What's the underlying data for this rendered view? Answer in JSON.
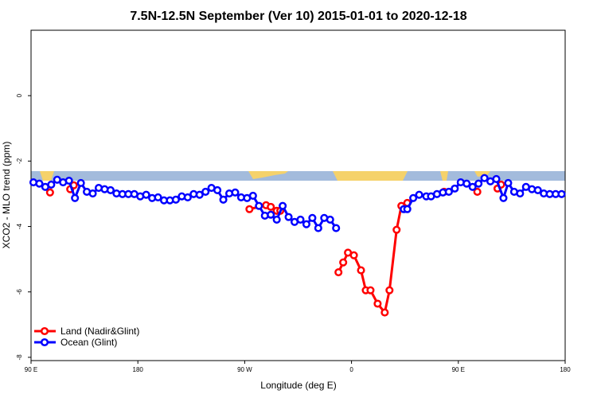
{
  "chart_data": {
    "type": "line",
    "title": "7.5N-12.5N September (Ver 10)   2015-01-01 to 2020-12-18",
    "x_label": "Longitude (deg E)",
    "y_label": "XCO2 - MLO trend (ppm)",
    "xlim": [
      90,
      540
    ],
    "xticks": [
      {
        "value": 90,
        "label": "90 E"
      },
      {
        "value": 180,
        "label": "180"
      },
      {
        "value": 270,
        "label": "90 W"
      },
      {
        "value": 360,
        "label": "0"
      },
      {
        "value": 450,
        "label": "90 E"
      },
      {
        "value": 540,
        "label": "180"
      }
    ],
    "ylim": [
      -8.1,
      2
    ],
    "yticks": [
      0,
      -2,
      -4,
      -6,
      -8
    ],
    "legend": "bottom-left",
    "series": [
      {
        "name": "Land (Nadir&Glint)",
        "color": "#ff0000",
        "x": [
          106,
          null,
          123,
          126,
          null,
          274,
          288,
          292,
          297,
          300,
          null,
          349,
          353,
          357,
          362,
          368,
          372,
          376,
          382,
          388,
          392,
          398,
          402,
          407,
          null,
          438,
          null,
          466,
          null,
          483,
          486
        ],
        "values": [
          -2.96,
          null,
          -2.86,
          -2.74,
          null,
          -3.47,
          -3.35,
          -3.4,
          -3.52,
          -3.52,
          null,
          -5.4,
          -5.1,
          -4.8,
          -4.88,
          -5.34,
          -5.95,
          -5.95,
          -6.36,
          -6.63,
          -5.95,
          -4.1,
          -3.37,
          -3.28,
          null,
          -2.94,
          null,
          -2.94,
          null,
          -2.84,
          -2.72
        ]
      },
      {
        "name": "Ocean (Glint)",
        "color": "#0000ff",
        "x": [
          92,
          97,
          102,
          107,
          112,
          117,
          122,
          127,
          132,
          137,
          142,
          147,
          152,
          157,
          162,
          167,
          172,
          177,
          182,
          187,
          192,
          197,
          202,
          207,
          212,
          217,
          222,
          227,
          232,
          237,
          242,
          247,
          252,
          257,
          262,
          267,
          272,
          277,
          282,
          287,
          292,
          297,
          302,
          307,
          312,
          317,
          322,
          327,
          332,
          337,
          342,
          347,
          null,
          404,
          407,
          412,
          417,
          423,
          427,
          432,
          437,
          442,
          447,
          452,
          457,
          462,
          467,
          472,
          477,
          482,
          488,
          492,
          497,
          502,
          507,
          512,
          517,
          522,
          527,
          532,
          537
        ],
        "values": [
          -2.65,
          -2.69,
          -2.79,
          -2.72,
          -2.57,
          -2.65,
          -2.6,
          -3.13,
          -2.67,
          -2.94,
          -2.99,
          -2.82,
          -2.86,
          -2.89,
          -2.99,
          -3.01,
          -3.01,
          -3.01,
          -3.08,
          -3.03,
          -3.13,
          -3.11,
          -3.2,
          -3.2,
          -3.18,
          -3.08,
          -3.11,
          -3.01,
          -3.03,
          -2.94,
          -2.82,
          -2.89,
          -3.18,
          -2.99,
          -2.96,
          -3.11,
          -3.13,
          -3.06,
          -3.37,
          -3.67,
          -3.64,
          -3.79,
          -3.37,
          -3.71,
          -3.86,
          -3.79,
          -3.93,
          -3.74,
          -4.05,
          -3.74,
          -3.79,
          -4.05,
          null,
          -3.47,
          -3.47,
          -3.13,
          -3.03,
          -3.08,
          -3.08,
          -3.01,
          -2.96,
          -2.94,
          -2.84,
          -2.65,
          -2.69,
          -2.79,
          -2.69,
          -2.52,
          -2.62,
          -2.55,
          -3.13,
          -2.67,
          -2.94,
          -2.99,
          -2.79,
          -2.86,
          -2.89,
          -2.99,
          -3.01,
          -3.01,
          -3.01
        ]
      }
    ]
  }
}
